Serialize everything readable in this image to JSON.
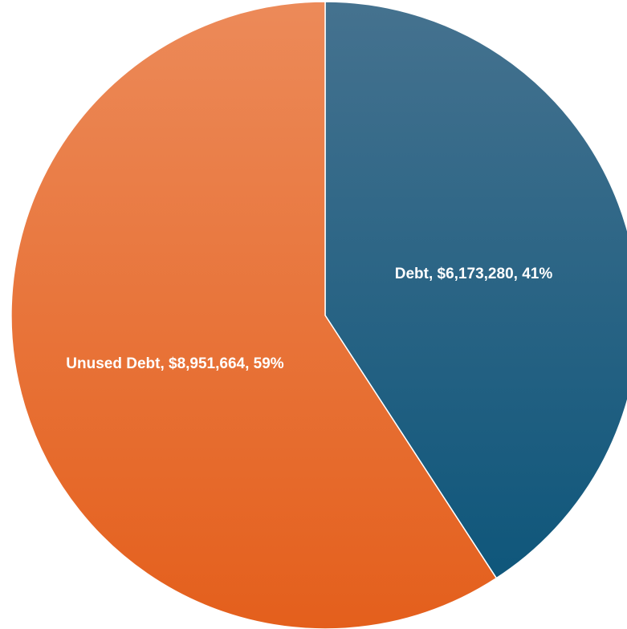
{
  "chart_data": {
    "type": "pie",
    "slices": [
      {
        "name": "Debt",
        "value": 6173280,
        "percent": 41,
        "label": "Debt, $6,173,280, 41%",
        "color_top": "#45728f",
        "color_bottom": "#0a5479"
      },
      {
        "name": "Unused Debt",
        "value": 8951664,
        "percent": 59,
        "label": "Unused Debt, $8,951,664, 59%",
        "color_top": "#ec8a59",
        "color_bottom": "#e45f1c"
      }
    ]
  }
}
